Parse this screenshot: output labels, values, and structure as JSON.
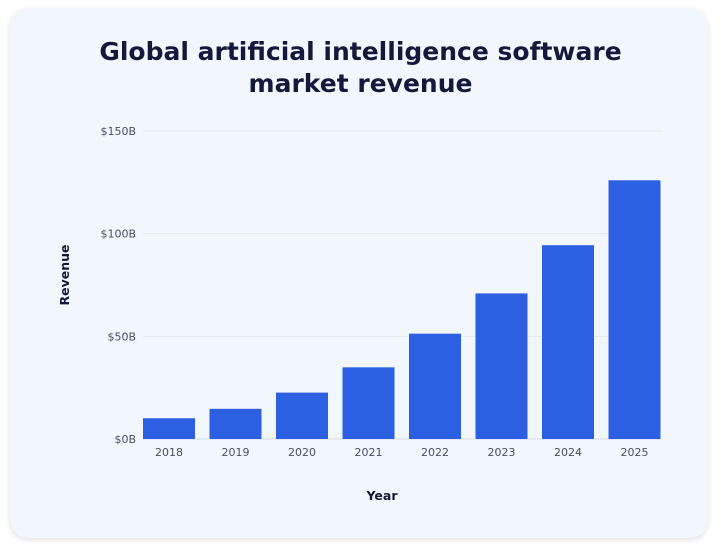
{
  "chart_data": {
    "type": "bar",
    "title_line1": "Global artificial intelligence software",
    "title_line2": "market revenue",
    "xlabel": "Year",
    "ylabel": "Revenue",
    "categories": [
      "2018",
      "2019",
      "2020",
      "2021",
      "2022",
      "2023",
      "2024",
      "2025"
    ],
    "values": [
      10.1,
      14.7,
      22.6,
      34.9,
      51.3,
      70.9,
      94.4,
      126.0
    ],
    "unit": "billion USD",
    "ylim": [
      0,
      150
    ],
    "yticks": [
      0,
      50,
      100,
      150
    ],
    "ytick_labels": [
      "$0B",
      "$50B",
      "$100B",
      "$150B"
    ],
    "grid": true,
    "bar_color": "#2d5fe3"
  }
}
